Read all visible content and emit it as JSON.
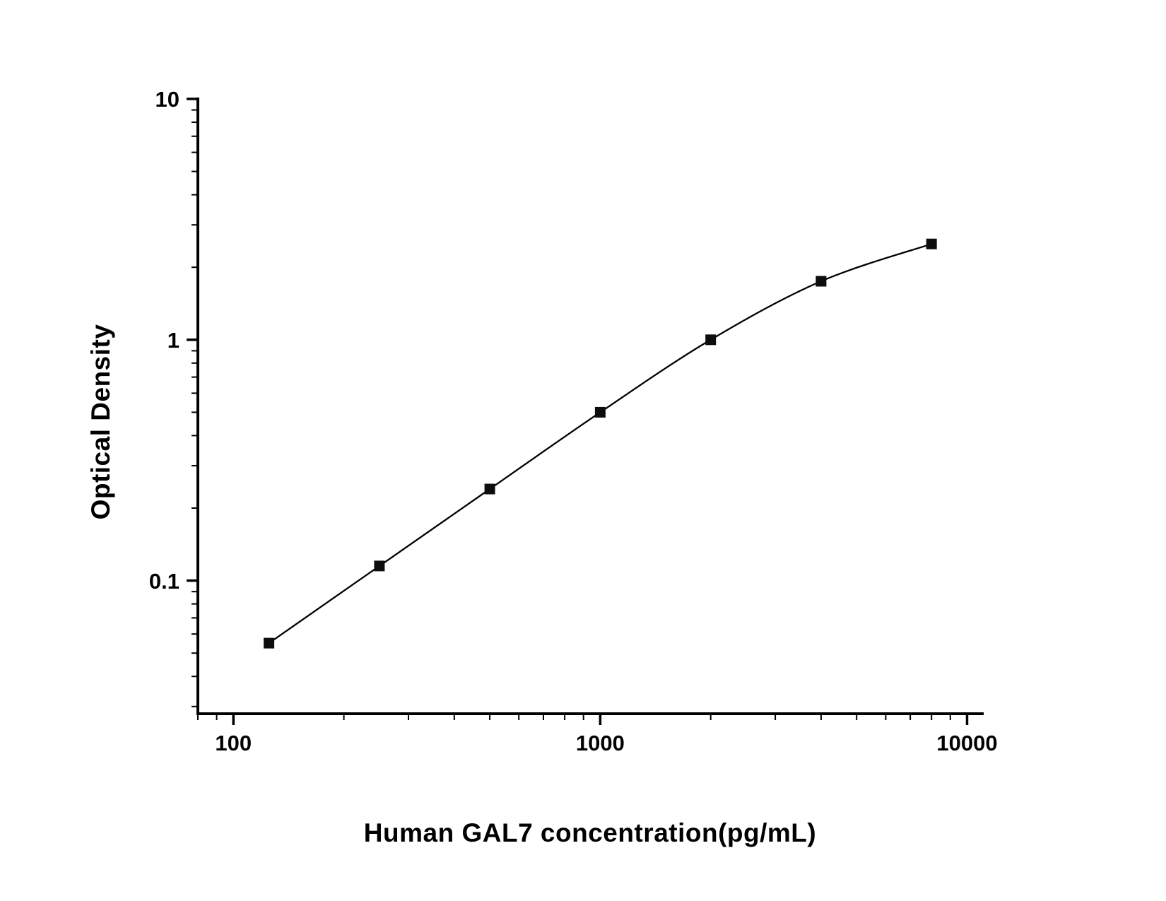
{
  "figure": {
    "xlabel": "Human GAL7 concentration(pg/mL)",
    "ylabel": "Optical Density"
  },
  "chart_data": {
    "type": "scatter",
    "line": "smooth",
    "title": "",
    "xlabel": "Human GAL7 concentration(pg/mL)",
    "ylabel": "Optical Density",
    "x": [
      125,
      250,
      500,
      1000,
      2000,
      4000,
      8000
    ],
    "y": [
      0.055,
      0.115,
      0.24,
      0.5,
      1.0,
      1.75,
      2.5
    ],
    "x_scale": "log",
    "y_scale": "log",
    "xlim": [
      80,
      11000
    ],
    "ylim": [
      0.028,
      10
    ],
    "x_major_ticks": [
      100,
      1000,
      10000
    ],
    "y_major_ticks": [
      0.1,
      1,
      10
    ],
    "marker": "filled-square",
    "marker_size": 15,
    "series_color": "#000000",
    "background_color": "#ffffff",
    "grid": false,
    "legend": false
  }
}
